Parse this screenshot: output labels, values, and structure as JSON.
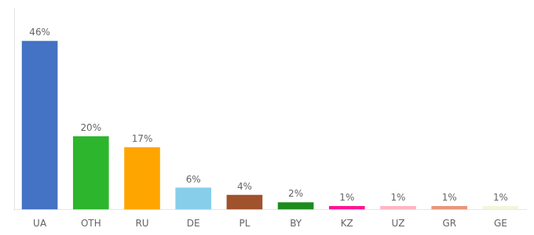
{
  "chart_data": {
    "type": "bar",
    "categories": [
      "UA",
      "OTH",
      "RU",
      "DE",
      "PL",
      "BY",
      "KZ",
      "UZ",
      "GR",
      "GE"
    ],
    "values": [
      46,
      20,
      17,
      6,
      4,
      2,
      1,
      1,
      1,
      1
    ],
    "value_labels": [
      "46%",
      "20%",
      "17%",
      "6%",
      "4%",
      "2%",
      "1%",
      "1%",
      "1%",
      "1%"
    ],
    "colors": [
      "#4472C4",
      "#2DB52D",
      "#FFA500",
      "#87CEEB",
      "#A0522D",
      "#1E8B1E",
      "#FF1493",
      "#FFB6C1",
      "#E8967A",
      "#F5F5DC"
    ],
    "ylim": [
      0,
      55
    ],
    "data_labels": true,
    "tick_labels": "x",
    "grid": false
  }
}
